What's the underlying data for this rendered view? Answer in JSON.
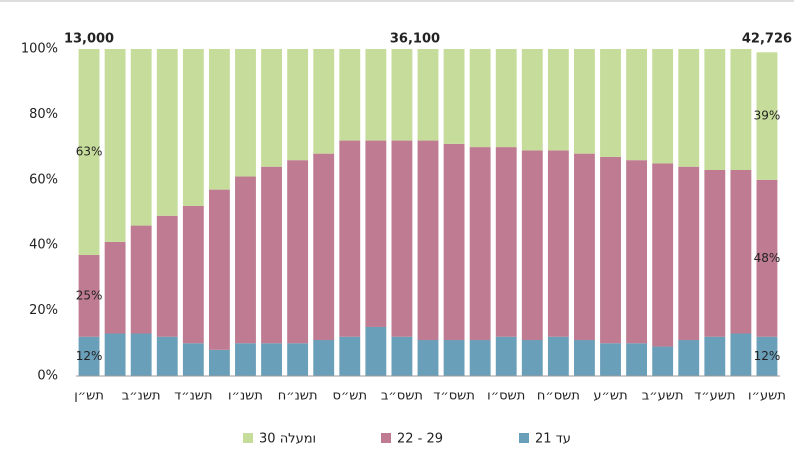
{
  "chart_data": {
    "type": "stacked_bar",
    "annotations": [
      "13,000",
      "36,100",
      "42,726"
    ],
    "categories": [
      "תש״ן",
      null,
      "תשנ״ב",
      null,
      "תשנ״ד",
      null,
      "תשנ״ו",
      null,
      "תשנ״ח",
      null,
      "תש״ס",
      null,
      "תשס״ב",
      null,
      "תשס״ד",
      null,
      "תשס״ו",
      null,
      "תשס״ח",
      null,
      "תש״ע",
      null,
      "תשע״ב",
      null,
      "תשע״ד",
      null,
      "תשע״ו"
    ],
    "series": [
      {
        "name": "עד 21",
        "color": "#6a9fb9",
        "values": [
          12,
          13,
          13,
          12,
          10,
          8,
          10,
          10,
          10,
          11,
          12,
          15,
          12,
          11,
          11,
          11,
          12,
          11,
          12,
          11,
          10,
          10,
          9,
          11,
          12,
          13,
          12
        ],
        "value_labels": [
          "12%",
          null,
          null,
          null,
          null,
          null,
          null,
          null,
          null,
          null,
          null,
          null,
          null,
          null,
          null,
          null,
          null,
          null,
          null,
          null,
          null,
          null,
          null,
          null,
          null,
          null,
          "12%"
        ]
      },
      {
        "name": "22 - 29",
        "color": "#bf7b91",
        "values": [
          25,
          28,
          33,
          37,
          42,
          49,
          51,
          54,
          56,
          57,
          60,
          57,
          60,
          61,
          60,
          59,
          58,
          58,
          57,
          57,
          57,
          56,
          56,
          53,
          51,
          50,
          48
        ],
        "value_labels": [
          "25%",
          null,
          null,
          null,
          null,
          null,
          null,
          null,
          null,
          null,
          null,
          null,
          null,
          null,
          null,
          null,
          null,
          null,
          null,
          null,
          null,
          null,
          null,
          null,
          null,
          null,
          "48%"
        ]
      },
      {
        "name": "30 ומעלה",
        "color": "#c6dc9a",
        "values": [
          63,
          59,
          54,
          51,
          48,
          43,
          39,
          36,
          34,
          32,
          28,
          28,
          28,
          28,
          29,
          30,
          30,
          31,
          31,
          32,
          33,
          34,
          35,
          36,
          37,
          37,
          39
        ],
        "value_labels": [
          "63%",
          null,
          null,
          null,
          null,
          null,
          null,
          null,
          null,
          null,
          null,
          null,
          null,
          null,
          null,
          null,
          null,
          null,
          null,
          null,
          null,
          null,
          null,
          null,
          null,
          null,
          "39%"
        ]
      }
    ],
    "ylim": [
      0,
      100
    ],
    "yticks": [
      {
        "value": 0,
        "label": "0%"
      },
      {
        "value": 20,
        "label": "20%"
      },
      {
        "value": 40,
        "label": "40%"
      },
      {
        "value": 60,
        "label": "60%"
      },
      {
        "value": 80,
        "label": "80%"
      },
      {
        "value": 100,
        "label": "100%"
      }
    ]
  }
}
